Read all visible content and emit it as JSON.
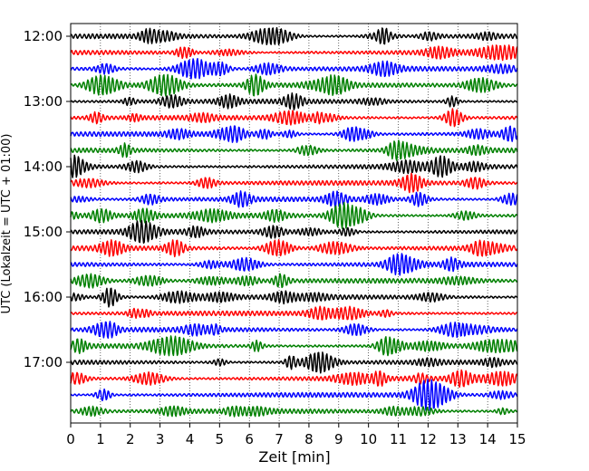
{
  "chart_data": {
    "type": "line",
    "title": "",
    "xlabel": "Zeit  [min]",
    "ylabel": "UTC (Lokalzeit = UTC + 01:00)",
    "xlim": [
      0,
      15
    ],
    "x_ticks": [
      "0",
      "1",
      "2",
      "3",
      "4",
      "5",
      "6",
      "7",
      "8",
      "9",
      "10",
      "11",
      "12",
      "13",
      "14",
      "15"
    ],
    "y_ticks": [
      "12:00",
      "13:00",
      "14:00",
      "15:00",
      "16:00",
      "17:00"
    ],
    "grid": "vertical dotted",
    "trace_interval_min": 15,
    "series": [
      {
        "start": "12:00",
        "color": "#000000"
      },
      {
        "start": "12:15",
        "color": "#ff0000"
      },
      {
        "start": "12:30",
        "color": "#0000ff"
      },
      {
        "start": "12:45",
        "color": "#008000"
      },
      {
        "start": "13:00",
        "color": "#000000"
      },
      {
        "start": "13:15",
        "color": "#ff0000"
      },
      {
        "start": "13:30",
        "color": "#0000ff"
      },
      {
        "start": "13:45",
        "color": "#008000"
      },
      {
        "start": "14:00",
        "color": "#000000"
      },
      {
        "start": "14:15",
        "color": "#ff0000"
      },
      {
        "start": "14:30",
        "color": "#0000ff"
      },
      {
        "start": "14:45",
        "color": "#008000"
      },
      {
        "start": "15:00",
        "color": "#000000"
      },
      {
        "start": "15:15",
        "color": "#ff0000"
      },
      {
        "start": "15:30",
        "color": "#0000ff"
      },
      {
        "start": "15:45",
        "color": "#008000"
      },
      {
        "start": "16:00",
        "color": "#000000"
      },
      {
        "start": "16:15",
        "color": "#ff0000"
      },
      {
        "start": "16:30",
        "color": "#0000ff"
      },
      {
        "start": "16:45",
        "color": "#008000"
      },
      {
        "start": "17:00",
        "color": "#000000"
      },
      {
        "start": "17:15",
        "color": "#ff0000"
      },
      {
        "start": "17:30",
        "color": "#0000ff"
      },
      {
        "start": "17:45",
        "color": "#008000"
      }
    ]
  }
}
